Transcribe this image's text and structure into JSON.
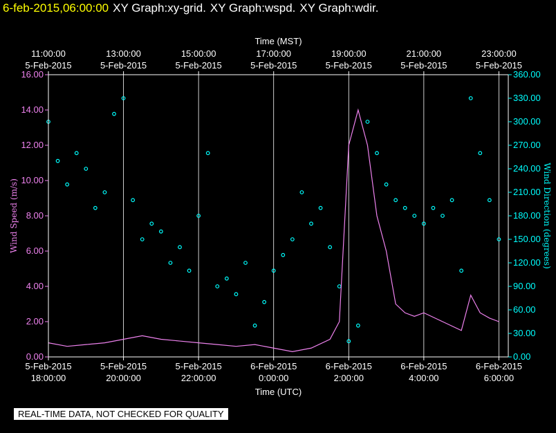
{
  "header": {
    "timestamp": "6-feb-2015,06:00:00",
    "titles": [
      "XY Graph:xy-grid.",
      "XY Graph:wspd.",
      "XY Graph:wdir."
    ]
  },
  "footer": {
    "note": "REAL-TIME DATA, NOT CHECKED FOR QUALITY"
  },
  "colors": {
    "background": "#000000",
    "speed": "#ee82ee",
    "direction": "#00ffff",
    "timestamp": "#ffff00",
    "axis_text": "#ffffff",
    "grid": "#ffffff"
  },
  "chart_data": {
    "type": "scatter",
    "title": "",
    "grid": true,
    "xlabel_top": "Time (MST)",
    "xlabel_bottom": "Time (UTC)",
    "ylabel_left": "Wind Speed (m/s)",
    "ylabel_right": "Wind Direction (degrees)",
    "x_range_utc_hours": [
      18.0,
      30.25
    ],
    "ylim_left": [
      0,
      16
    ],
    "ylim_right": [
      0,
      360
    ],
    "top_ticks": [
      {
        "time": "11:00:00",
        "date": "5-Feb-2015"
      },
      {
        "time": "13:00:00",
        "date": "5-Feb-2015"
      },
      {
        "time": "15:00:00",
        "date": "5-Feb-2015"
      },
      {
        "time": "17:00:00",
        "date": "5-Feb-2015"
      },
      {
        "time": "19:00:00",
        "date": "5-Feb-2015"
      },
      {
        "time": "21:00:00",
        "date": "5-Feb-2015"
      },
      {
        "time": "23:00:00",
        "date": "5-Feb-2015"
      }
    ],
    "bottom_ticks": [
      {
        "date": "5-Feb-2015",
        "time": "18:00:00"
      },
      {
        "date": "5-Feb-2015",
        "time": "20:00:00"
      },
      {
        "date": "5-Feb-2015",
        "time": "22:00:00"
      },
      {
        "date": "6-Feb-2015",
        "time": "0:00:00"
      },
      {
        "date": "6-Feb-2015",
        "time": "2:00:00"
      },
      {
        "date": "6-Feb-2015",
        "time": "4:00:00"
      },
      {
        "date": "6-Feb-2015",
        "time": "6:00:00"
      }
    ],
    "left_ticks": [
      "0.00",
      "2.00",
      "4.00",
      "6.00",
      "8.00",
      "10.00",
      "12.00",
      "14.00",
      "16.00"
    ],
    "right_ticks": [
      "0.00",
      "30.00",
      "60.00",
      "90.00",
      "120.00",
      "150.00",
      "180.00",
      "210.00",
      "240.00",
      "270.00",
      "300.00",
      "330.00",
      "360.00"
    ],
    "series": [
      {
        "name": "wspd",
        "color": "#ee82ee",
        "style": "line",
        "axis": "left",
        "x": [
          18.0,
          18.5,
          19.0,
          19.5,
          20.0,
          20.5,
          21.0,
          21.5,
          22.0,
          22.5,
          23.0,
          23.5,
          24.0,
          24.5,
          25.0,
          25.5,
          25.75,
          26.0,
          26.25,
          26.5,
          26.75,
          27.0,
          27.25,
          27.5,
          27.75,
          28.0,
          28.5,
          29.0,
          29.25,
          29.5,
          29.75,
          30.0
        ],
        "y": [
          0.8,
          0.6,
          0.7,
          0.8,
          1.0,
          1.2,
          1.0,
          0.9,
          0.8,
          0.7,
          0.6,
          0.7,
          0.5,
          0.3,
          0.5,
          1.0,
          2.0,
          12.0,
          14.0,
          12.0,
          8.0,
          6.0,
          3.0,
          2.5,
          2.3,
          2.5,
          2.0,
          1.5,
          3.5,
          2.5,
          2.2,
          2.0
        ]
      },
      {
        "name": "wdir",
        "color": "#00ffff",
        "style": "circles",
        "axis": "right",
        "x": [
          18.0,
          18.25,
          18.5,
          18.75,
          19.0,
          19.25,
          19.5,
          19.75,
          20.0,
          20.25,
          20.5,
          20.75,
          21.0,
          21.25,
          21.5,
          21.75,
          22.0,
          22.25,
          22.5,
          22.75,
          23.0,
          23.25,
          23.5,
          23.75,
          24.0,
          24.25,
          24.5,
          24.75,
          25.0,
          25.25,
          25.5,
          25.75,
          26.0,
          26.25,
          26.5,
          26.75,
          27.0,
          27.25,
          27.5,
          27.75,
          28.0,
          28.25,
          28.5,
          28.75,
          29.0,
          29.25,
          29.5,
          29.75,
          30.0
        ],
        "y": [
          300,
          250,
          220,
          260,
          240,
          190,
          210,
          310,
          330,
          200,
          150,
          170,
          160,
          120,
          140,
          110,
          180,
          260,
          90,
          100,
          80,
          120,
          40,
          70,
          110,
          130,
          150,
          210,
          170,
          190,
          140,
          90,
          20,
          40,
          300,
          260,
          220,
          200,
          190,
          180,
          170,
          190,
          180,
          200,
          110,
          330,
          260,
          200,
          150
        ]
      }
    ]
  }
}
